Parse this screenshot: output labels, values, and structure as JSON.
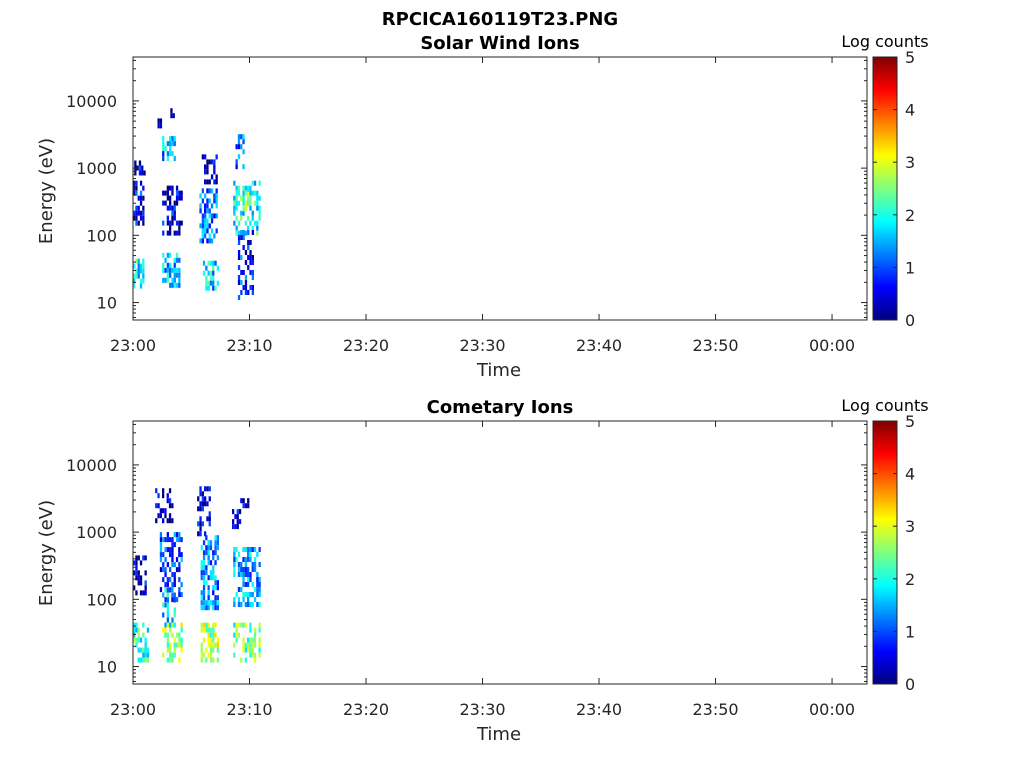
{
  "figure_title": "RPCICA160119T23.PNG",
  "colors": {
    "axis": "#262626",
    "colormap": [
      "#00007f",
      "#0000ff",
      "#007fff",
      "#00ffff",
      "#7fff7f",
      "#ffff00",
      "#ff7f00",
      "#ff0000",
      "#7f0000"
    ]
  },
  "chart_data": [
    {
      "type": "heatmap",
      "title": "Solar Wind Ions",
      "xlabel": "Time",
      "ylabel": "Energy (eV)",
      "y_scale": "log",
      "xlim": [
        "23:00",
        "00:03"
      ],
      "ylim": [
        5.5,
        45000
      ],
      "x_ticks": [
        "23:00",
        "23:10",
        "23:20",
        "23:30",
        "23:40",
        "23:50",
        "00:00"
      ],
      "y_ticks": [
        "10",
        "100",
        "1000",
        "10000"
      ],
      "colorbar": {
        "label": "Log counts",
        "range": [
          0,
          5
        ],
        "ticks": [
          "0",
          "1",
          "2",
          "3",
          "4",
          "5"
        ]
      },
      "series": [
        {
          "start": "23:00",
          "end": "23:00.8",
          "energy": [
            150,
            650
          ],
          "value": 0.6
        },
        {
          "start": "23:00",
          "end": "23:00.8",
          "energy": [
            17,
            45
          ],
          "value": 1.9
        },
        {
          "start": "23:00.1",
          "end": "23:00.9",
          "energy": [
            900,
            1300
          ],
          "value": 0.4
        },
        {
          "start": "23:02.1",
          "end": "23:02.4",
          "energy": [
            4500,
            5500
          ],
          "value": 0.3
        },
        {
          "start": "23:03.2",
          "end": "23:03.5",
          "energy": [
            6500,
            7800
          ],
          "value": 0.2
        },
        {
          "start": "23:02.5",
          "end": "23:03.5",
          "energy": [
            1300,
            3000
          ],
          "value": 1.4
        },
        {
          "start": "23:02.5",
          "end": "23:04.2",
          "energy": [
            100,
            550
          ],
          "value": 0.5
        },
        {
          "start": "23:02.5",
          "end": "23:03.9",
          "energy": [
            17,
            55
          ],
          "value": 1.5
        },
        {
          "start": "23:05.9",
          "end": "23:07.1",
          "energy": [
            600,
            1600
          ],
          "value": 0.3
        },
        {
          "start": "23:05.7",
          "end": "23:07.2",
          "energy": [
            80,
            500
          ],
          "value": 1.2
        },
        {
          "start": "23:06.0",
          "end": "23:07.2",
          "energy": [
            17,
            42
          ],
          "value": 1.6
        },
        {
          "start": "23:08.8",
          "end": "23:09.4",
          "energy": [
            1000,
            3200
          ],
          "value": 1.1
        },
        {
          "start": "23:08.6",
          "end": "23:10.8",
          "energy": [
            100,
            650
          ],
          "value": 1.9
        },
        {
          "start": "23:09.2",
          "end": "23:09.8",
          "energy": [
            250,
            450
          ],
          "value": 2.7
        },
        {
          "start": "23:09.0",
          "end": "23:10.3",
          "energy": [
            12,
            120
          ],
          "value": 0.8
        }
      ]
    },
    {
      "type": "heatmap",
      "title": "Cometary Ions",
      "xlabel": "Time",
      "ylabel": "Energy (eV)",
      "y_scale": "log",
      "xlim": [
        "23:00",
        "00:03"
      ],
      "ylim": [
        5.5,
        45000
      ],
      "x_ticks": [
        "23:00",
        "23:10",
        "23:20",
        "23:30",
        "23:40",
        "23:50",
        "00:00"
      ],
      "y_ticks": [
        "10",
        "100",
        "1000",
        "10000"
      ],
      "colorbar": {
        "label": "Log counts",
        "range": [
          0,
          5
        ],
        "ticks": [
          "0",
          "1",
          "2",
          "3",
          "4",
          "5"
        ]
      },
      "series": [
        {
          "start": "23:00",
          "end": "23:01.0",
          "energy": [
            120,
            450
          ],
          "value": 0.4
        },
        {
          "start": "23:00",
          "end": "23:01.3",
          "energy": [
            12,
            45
          ],
          "value": 2.1
        },
        {
          "start": "23:01.7",
          "end": "23:03.4",
          "energy": [
            1500,
            4500
          ],
          "value": 0.3
        },
        {
          "start": "23:02.3",
          "end": "23:04.2",
          "energy": [
            100,
            1000
          ],
          "value": 0.9
        },
        {
          "start": "23:02.5",
          "end": "23:03.5",
          "energy": [
            45,
            150
          ],
          "value": 1.6
        },
        {
          "start": "23:02.5",
          "end": "23:04.2",
          "energy": [
            12,
            45
          ],
          "value": 2.6
        },
        {
          "start": "23:05.5",
          "end": "23:06.5",
          "energy": [
            1000,
            4800
          ],
          "value": 0.4
        },
        {
          "start": "23:05.8",
          "end": "23:07.2",
          "energy": [
            80,
            900
          ],
          "value": 1.3
        },
        {
          "start": "23:05.8",
          "end": "23:07.2",
          "energy": [
            12,
            45
          ],
          "value": 2.7
        },
        {
          "start": "23:08.5",
          "end": "23:09.2",
          "energy": [
            1300,
            2200
          ],
          "value": 0.3
        },
        {
          "start": "23:09.2",
          "end": "23:10.0",
          "energy": [
            2400,
            3200
          ],
          "value": 0.5
        },
        {
          "start": "23:08.6",
          "end": "23:10.8",
          "energy": [
            80,
            600
          ],
          "value": 1.4
        },
        {
          "start": "23:08.6",
          "end": "23:10.8",
          "energy": [
            12,
            45
          ],
          "value": 2.4
        }
      ]
    }
  ]
}
